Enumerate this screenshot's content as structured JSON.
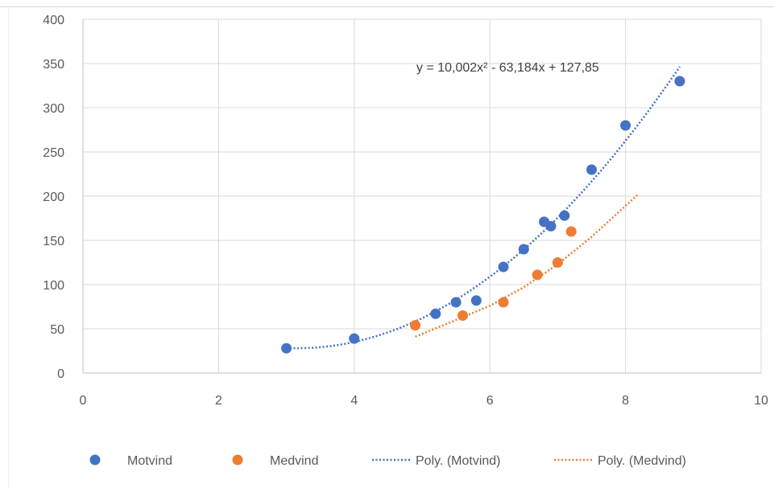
{
  "chart_data": {
    "type": "scatter",
    "xlim": [
      0,
      10
    ],
    "ylim": [
      0,
      400
    ],
    "xticks": [
      0,
      2,
      4,
      6,
      8,
      10
    ],
    "yticks": [
      0,
      50,
      100,
      150,
      200,
      250,
      300,
      350,
      400
    ],
    "grid": true,
    "legend_position": "bottom",
    "series": [
      {
        "name": "Motvind",
        "color": "#4472C4",
        "points": [
          [
            3,
            28
          ],
          [
            4,
            39
          ],
          [
            5.2,
            67
          ],
          [
            5.5,
            80
          ],
          [
            5.8,
            82
          ],
          [
            6.2,
            120
          ],
          [
            6.5,
            140
          ],
          [
            6.8,
            171
          ],
          [
            6.9,
            166
          ],
          [
            7.1,
            178
          ],
          [
            7.5,
            230
          ],
          [
            8,
            280
          ],
          [
            8.8,
            330
          ]
        ]
      },
      {
        "name": "Medvind",
        "color": "#ED7D31",
        "points": [
          [
            4.9,
            54
          ],
          [
            5.6,
            65
          ],
          [
            6.2,
            80
          ],
          [
            6.7,
            111
          ],
          [
            7,
            125
          ],
          [
            7.2,
            160
          ]
        ]
      }
    ],
    "trendlines": [
      {
        "name": "Poly. (Motvind)",
        "color": "#4472C4",
        "type": "polynomial",
        "coefficients": [
          10.002,
          -63.184,
          127.85
        ],
        "x_range": [
          3,
          8.8
        ],
        "equation_label": "y = 10,002x² - 63,184x + 127,85"
      },
      {
        "name": "Poly. (Medvind)",
        "color": "#ED7D31",
        "type": "polynomial",
        "points": [
          [
            4.9,
            41
          ],
          [
            5.5,
            60
          ],
          [
            6,
            76
          ],
          [
            6.5,
            97
          ],
          [
            7,
            123
          ],
          [
            7.5,
            154
          ],
          [
            8,
            189
          ],
          [
            8.2,
            203
          ]
        ],
        "x_range": [
          4.9,
          8.2
        ]
      }
    ]
  }
}
